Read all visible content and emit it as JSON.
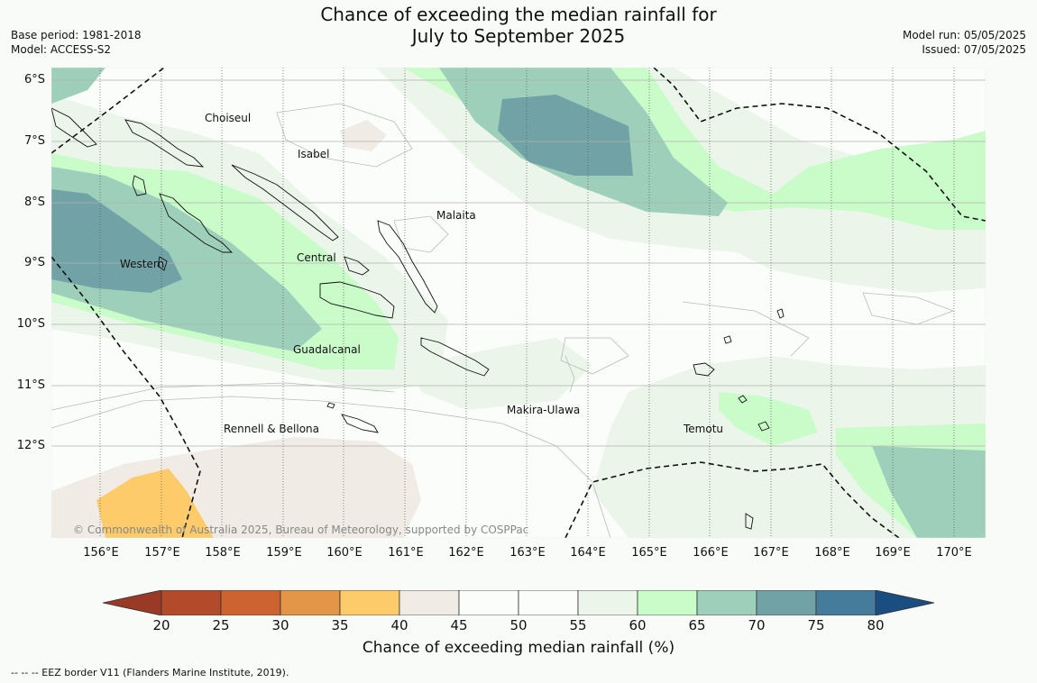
{
  "header": {
    "title_line1": "Chance of exceeding the median rainfall for",
    "title_line2": "July to September 2025",
    "base_period": "Base period: 1981-2018",
    "model": "Model: ACCESS-S2",
    "model_run": "Model run: 05/05/2025",
    "issued": "Issued: 07/05/2025"
  },
  "map": {
    "lat_labels": [
      "6°S",
      "7°S",
      "8°S",
      "9°S",
      "10°S",
      "11°S",
      "12°S"
    ],
    "lon_labels": [
      "156°E",
      "157°E",
      "158°E",
      "159°E",
      "160°E",
      "161°E",
      "162°E",
      "163°E",
      "164°E",
      "165°E",
      "166°E",
      "167°E",
      "168°E",
      "169°E",
      "170°E"
    ],
    "province_labels": [
      "Choiseul",
      "Isabel",
      "Malaita",
      "Central",
      "Western",
      "Guadalcanal",
      "Makira-Ulawa",
      "Rennell & Bellona",
      "Temotu"
    ],
    "copyright": "© Commonwealth of Australia 2025, Bureau of Meteorology, supported by COSPPac"
  },
  "colorbar": {
    "tick_labels": [
      "20",
      "25",
      "30",
      "35",
      "40",
      "45",
      "50",
      "55",
      "60",
      "65",
      "70",
      "75",
      "80"
    ],
    "colors": [
      "#b34a2a",
      "#cc6330",
      "#e39548",
      "#fdcb6a",
      "#f1ebe6",
      "#fbfdfb",
      "#fbfdfb",
      "#ebf5ea",
      "#c9fcc9",
      "#9dcfba",
      "#71a3a6",
      "#457c9b"
    ],
    "extend_low_color": "#9a3a26",
    "extend_high_color": "#1a4e80",
    "title": "Chance of exceeding median rainfall (%)"
  },
  "legend": {
    "eez_note": "-- -- -- EEZ border V11 (Flanders Marine Institute, 2019)."
  }
}
